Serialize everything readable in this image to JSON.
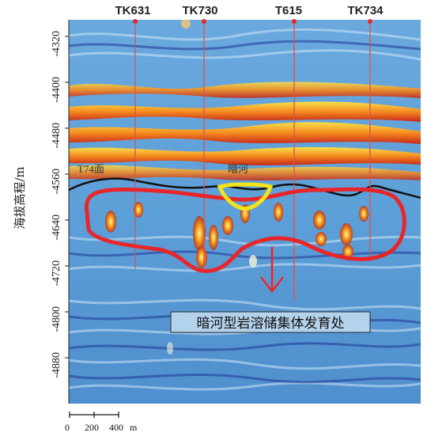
{
  "wells": [
    {
      "name": "TK631"
    },
    {
      "name": "TK730"
    },
    {
      "name": "T615"
    },
    {
      "name": "TK734"
    }
  ],
  "y_axis": {
    "title": "海拔高程/m",
    "ticks": [
      "-4320",
      "-4400",
      "-4480",
      "-4560",
      "-4640",
      "-4720",
      "-4800",
      "-4880"
    ]
  },
  "horizon_label": "T74面",
  "river_label": "暗河",
  "annotation": "暗河型岩溶储集体发育处",
  "scale_bar": {
    "ticks": [
      "0",
      "200",
      "400"
    ],
    "unit": "m"
  },
  "colors": {
    "background": "#5b9bd5",
    "red_outline": "#e8262a",
    "yellow_outline": "#f3e31b",
    "horizon": "#111111",
    "warm_band": "#f7a21b",
    "well_line": "#d9534f"
  }
}
